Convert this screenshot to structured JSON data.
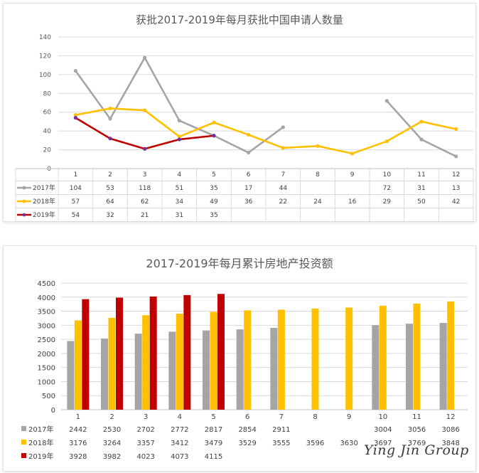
{
  "chart_data": [
    {
      "type": "line",
      "title": "获批2017-2019年每月获批中国申请人数量",
      "categories": [
        "1",
        "2",
        "3",
        "4",
        "5",
        "6",
        "7",
        "8",
        "9",
        "10",
        "11",
        "12"
      ],
      "ylim": [
        0,
        140
      ],
      "yticks": [
        "0",
        "20",
        "40",
        "60",
        "80",
        "100",
        "120",
        "140"
      ],
      "grid": true,
      "legend": "data-table-left",
      "series": [
        {
          "name": "2017年",
          "color": "#a5a5a5",
          "values": [
            104,
            53,
            118,
            51,
            35,
            17,
            44,
            null,
            null,
            72,
            31,
            13
          ]
        },
        {
          "name": "2018年",
          "color": "#ffc000",
          "values": [
            57,
            64,
            62,
            34,
            49,
            36,
            22,
            24,
            16,
            29,
            50,
            42
          ]
        },
        {
          "name": "2019年",
          "color": "#c00000",
          "values": [
            54,
            32,
            21,
            31,
            35,
            null,
            null,
            null,
            null,
            null,
            null,
            null
          ]
        }
      ]
    },
    {
      "type": "bar",
      "title": "2017-2019年每月累计房地产投资额",
      "categories": [
        "1",
        "2",
        "3",
        "4",
        "5",
        "6",
        "7",
        "8",
        "9",
        "10",
        "11",
        "12"
      ],
      "ylim": [
        0,
        4500
      ],
      "yticks": [
        "0",
        "500",
        "1000",
        "1500",
        "2000",
        "2500",
        "3000",
        "3500",
        "4000",
        "4500"
      ],
      "grid": true,
      "legend": "data-table-left",
      "series": [
        {
          "name": "2017年",
          "color": "#a5a5a5",
          "values": [
            2442,
            2530,
            2702,
            2772,
            2817,
            2854,
            2911,
            null,
            null,
            3004,
            3056,
            3086
          ]
        },
        {
          "name": "2018年",
          "color": "#ffc000",
          "values": [
            3176,
            3264,
            3357,
            3412,
            3479,
            3529,
            3555,
            3596,
            3630,
            3697,
            3769,
            3848
          ]
        },
        {
          "name": "2019年",
          "color": "#c00000",
          "values": [
            3928,
            3982,
            4023,
            4073,
            4115,
            null,
            null,
            null,
            null,
            null,
            null,
            null
          ]
        }
      ]
    }
  ],
  "watermark": "Ying Jin Group"
}
